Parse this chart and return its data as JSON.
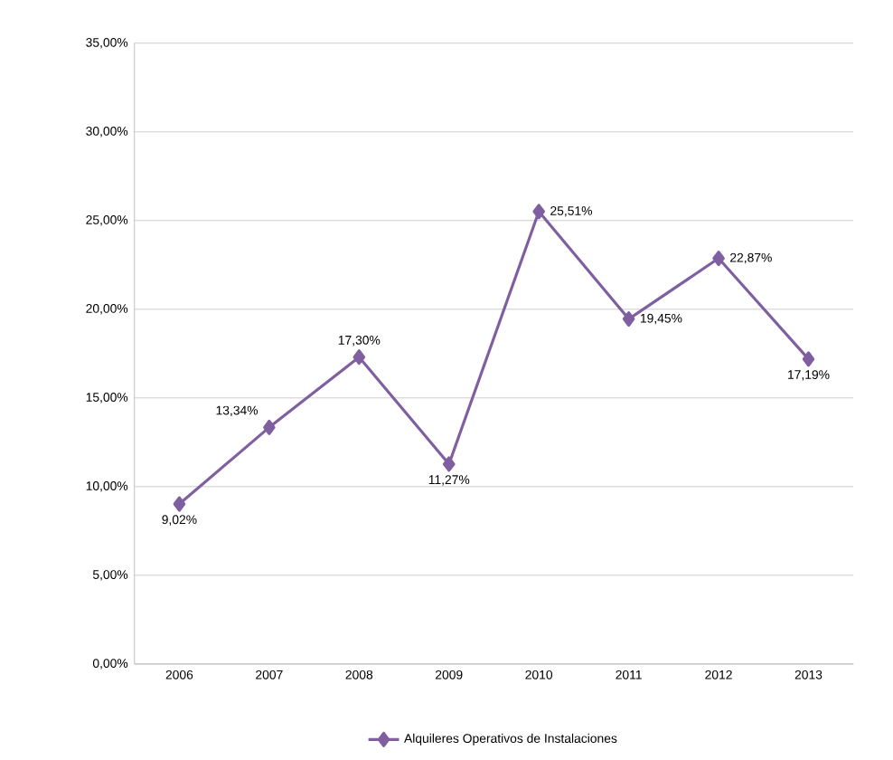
{
  "chart_data": {
    "type": "line",
    "categories": [
      "2006",
      "2007",
      "2008",
      "2009",
      "2010",
      "2011",
      "2012",
      "2013"
    ],
    "series": [
      {
        "name": "Alquileres Operativos de Instalaciones",
        "color": "#7f5fa0",
        "values": [
          9.02,
          13.34,
          17.3,
          11.27,
          25.51,
          19.45,
          22.87,
          17.19
        ],
        "value_labels": [
          "9,02%",
          "13,34%",
          "17,30%",
          "11,27%",
          "25,51%",
          "19,45%",
          "22,87%",
          "17,19%"
        ]
      }
    ],
    "ylim": [
      0,
      35
    ],
    "yticks": [
      {
        "value": 0,
        "label": "0,00%"
      },
      {
        "value": 5,
        "label": "5,00%"
      },
      {
        "value": 10,
        "label": "10,00%"
      },
      {
        "value": 15,
        "label": "15,00%"
      },
      {
        "value": 20,
        "label": "20,00%"
      },
      {
        "value": 25,
        "label": "25,00%"
      },
      {
        "value": 30,
        "label": "30,00%"
      },
      {
        "value": 35,
        "label": "35,00%"
      }
    ],
    "grid": "y",
    "legend": "bottom",
    "marker": "diamond",
    "line_style": "solid"
  }
}
